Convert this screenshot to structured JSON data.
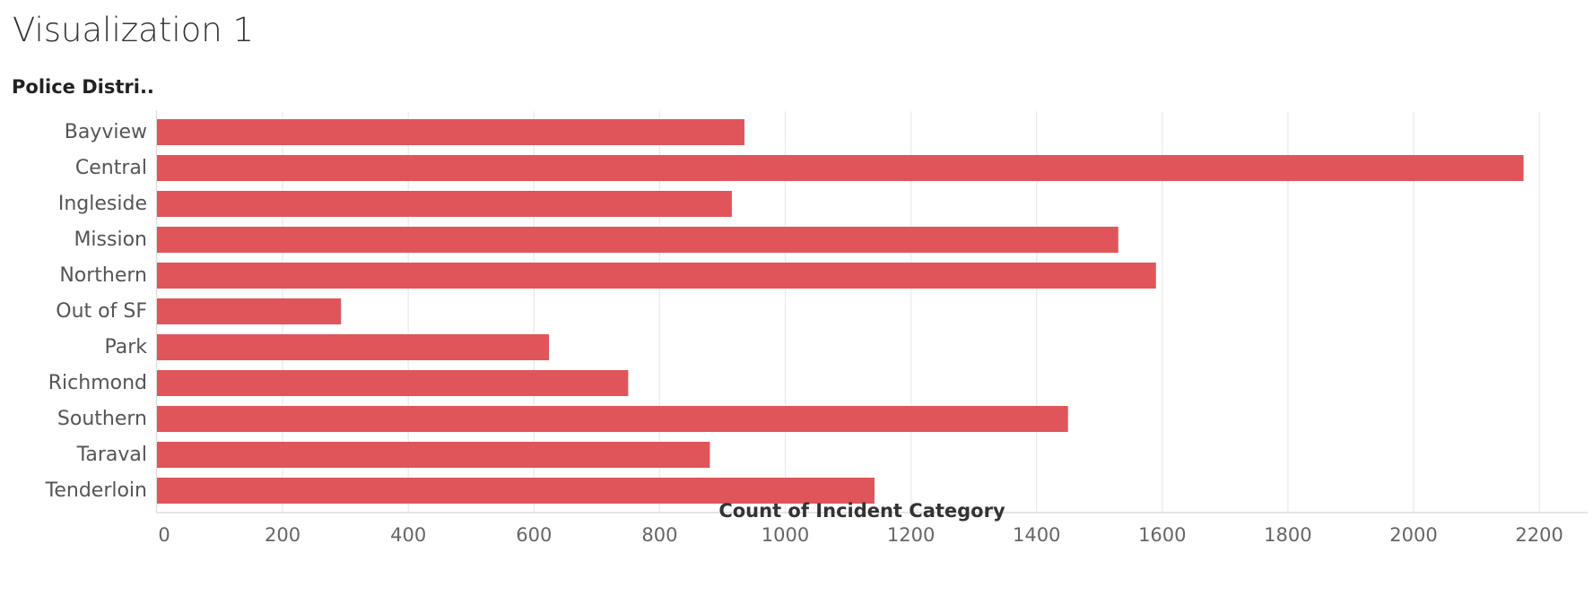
{
  "page": {
    "title": "Visualization 1"
  },
  "chart_data": {
    "type": "bar",
    "orientation": "horizontal",
    "row_header": "Police Distri..",
    "categories": [
      "Bayview",
      "Central",
      "Ingleside",
      "Mission",
      "Northern",
      "Out of SF",
      "Park",
      "Richmond",
      "Southern",
      "Taraval",
      "Tenderloin"
    ],
    "values": [
      935,
      2175,
      915,
      1530,
      1590,
      293,
      624,
      750,
      1450,
      880,
      1142
    ],
    "xlabel": "Count of Incident Category",
    "ylabel": "Police Distri..",
    "xlim": [
      0,
      2280
    ],
    "x_ticks": [
      0,
      200,
      400,
      600,
      800,
      1000,
      1200,
      1400,
      1600,
      1800,
      2000,
      2200
    ],
    "x_tick_labels": [
      "0",
      "200",
      "400",
      "600",
      "800",
      "1000",
      "1200",
      "1400",
      "1600",
      "1800",
      "2000",
      "2200"
    ],
    "grid": "vertical",
    "bar_color": "#e0555a",
    "grid_color": "#ececec",
    "axis_color": "#dddddd"
  }
}
